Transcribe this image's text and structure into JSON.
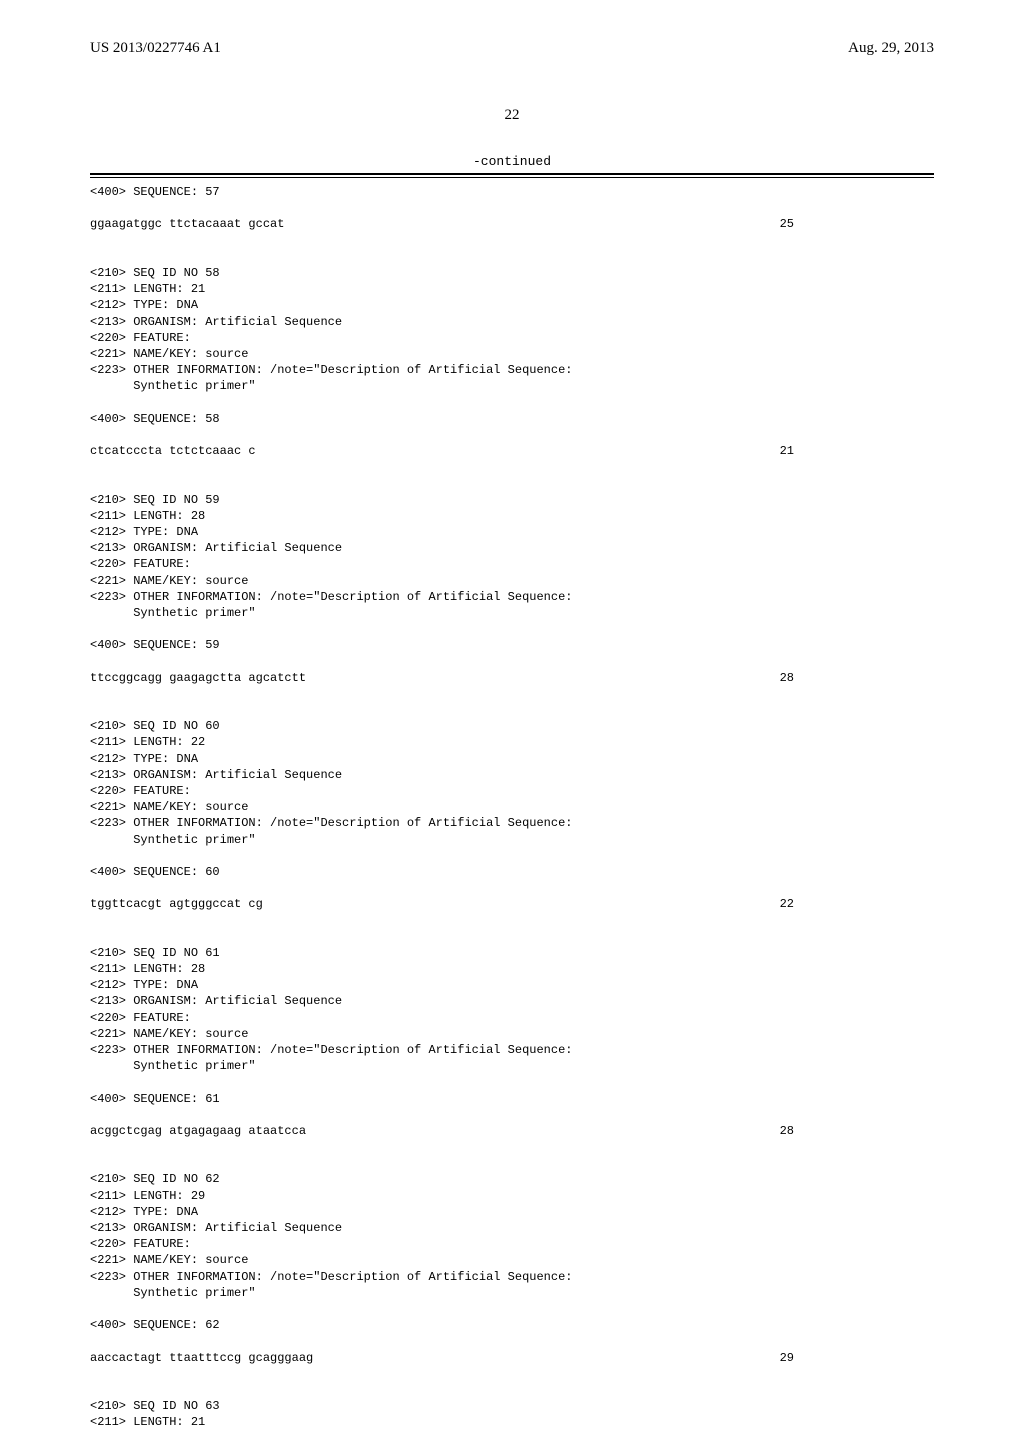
{
  "header": {
    "left": "US 2013/0227746 A1",
    "right": "Aug. 29, 2013"
  },
  "page_number": "22",
  "continued_label": "-continued",
  "entries": [
    {
      "type": "line",
      "text": "<400> SEQUENCE: 57"
    },
    {
      "type": "blank"
    },
    {
      "type": "seq",
      "text": "ggaagatggc ttctacaaat gccat",
      "num": "25"
    },
    {
      "type": "blank"
    },
    {
      "type": "blank"
    },
    {
      "type": "line",
      "text": "<210> SEQ ID NO 58"
    },
    {
      "type": "line",
      "text": "<211> LENGTH: 21"
    },
    {
      "type": "line",
      "text": "<212> TYPE: DNA"
    },
    {
      "type": "line",
      "text": "<213> ORGANISM: Artificial Sequence"
    },
    {
      "type": "line",
      "text": "<220> FEATURE:"
    },
    {
      "type": "line",
      "text": "<221> NAME/KEY: source"
    },
    {
      "type": "line",
      "text": "<223> OTHER INFORMATION: /note=\"Description of Artificial Sequence:"
    },
    {
      "type": "line",
      "text": "      Synthetic primer\""
    },
    {
      "type": "blank"
    },
    {
      "type": "line",
      "text": "<400> SEQUENCE: 58"
    },
    {
      "type": "blank"
    },
    {
      "type": "seq",
      "text": "ctcatcccta tctctcaaac c",
      "num": "21"
    },
    {
      "type": "blank"
    },
    {
      "type": "blank"
    },
    {
      "type": "line",
      "text": "<210> SEQ ID NO 59"
    },
    {
      "type": "line",
      "text": "<211> LENGTH: 28"
    },
    {
      "type": "line",
      "text": "<212> TYPE: DNA"
    },
    {
      "type": "line",
      "text": "<213> ORGANISM: Artificial Sequence"
    },
    {
      "type": "line",
      "text": "<220> FEATURE:"
    },
    {
      "type": "line",
      "text": "<221> NAME/KEY: source"
    },
    {
      "type": "line",
      "text": "<223> OTHER INFORMATION: /note=\"Description of Artificial Sequence:"
    },
    {
      "type": "line",
      "text": "      Synthetic primer\""
    },
    {
      "type": "blank"
    },
    {
      "type": "line",
      "text": "<400> SEQUENCE: 59"
    },
    {
      "type": "blank"
    },
    {
      "type": "seq",
      "text": "ttccggcagg gaagagctta agcatctt",
      "num": "28"
    },
    {
      "type": "blank"
    },
    {
      "type": "blank"
    },
    {
      "type": "line",
      "text": "<210> SEQ ID NO 60"
    },
    {
      "type": "line",
      "text": "<211> LENGTH: 22"
    },
    {
      "type": "line",
      "text": "<212> TYPE: DNA"
    },
    {
      "type": "line",
      "text": "<213> ORGANISM: Artificial Sequence"
    },
    {
      "type": "line",
      "text": "<220> FEATURE:"
    },
    {
      "type": "line",
      "text": "<221> NAME/KEY: source"
    },
    {
      "type": "line",
      "text": "<223> OTHER INFORMATION: /note=\"Description of Artificial Sequence:"
    },
    {
      "type": "line",
      "text": "      Synthetic primer\""
    },
    {
      "type": "blank"
    },
    {
      "type": "line",
      "text": "<400> SEQUENCE: 60"
    },
    {
      "type": "blank"
    },
    {
      "type": "seq",
      "text": "tggttcacgt agtgggccat cg",
      "num": "22"
    },
    {
      "type": "blank"
    },
    {
      "type": "blank"
    },
    {
      "type": "line",
      "text": "<210> SEQ ID NO 61"
    },
    {
      "type": "line",
      "text": "<211> LENGTH: 28"
    },
    {
      "type": "line",
      "text": "<212> TYPE: DNA"
    },
    {
      "type": "line",
      "text": "<213> ORGANISM: Artificial Sequence"
    },
    {
      "type": "line",
      "text": "<220> FEATURE:"
    },
    {
      "type": "line",
      "text": "<221> NAME/KEY: source"
    },
    {
      "type": "line",
      "text": "<223> OTHER INFORMATION: /note=\"Description of Artificial Sequence:"
    },
    {
      "type": "line",
      "text": "      Synthetic primer\""
    },
    {
      "type": "blank"
    },
    {
      "type": "line",
      "text": "<400> SEQUENCE: 61"
    },
    {
      "type": "blank"
    },
    {
      "type": "seq",
      "text": "acggctcgag atgagagaag ataatcca",
      "num": "28"
    },
    {
      "type": "blank"
    },
    {
      "type": "blank"
    },
    {
      "type": "line",
      "text": "<210> SEQ ID NO 62"
    },
    {
      "type": "line",
      "text": "<211> LENGTH: 29"
    },
    {
      "type": "line",
      "text": "<212> TYPE: DNA"
    },
    {
      "type": "line",
      "text": "<213> ORGANISM: Artificial Sequence"
    },
    {
      "type": "line",
      "text": "<220> FEATURE:"
    },
    {
      "type": "line",
      "text": "<221> NAME/KEY: source"
    },
    {
      "type": "line",
      "text": "<223> OTHER INFORMATION: /note=\"Description of Artificial Sequence:"
    },
    {
      "type": "line",
      "text": "      Synthetic primer\""
    },
    {
      "type": "blank"
    },
    {
      "type": "line",
      "text": "<400> SEQUENCE: 62"
    },
    {
      "type": "blank"
    },
    {
      "type": "seq",
      "text": "aaccactagt ttaatttccg gcagggaag",
      "num": "29"
    },
    {
      "type": "blank"
    },
    {
      "type": "blank"
    },
    {
      "type": "line",
      "text": "<210> SEQ ID NO 63"
    },
    {
      "type": "line",
      "text": "<211> LENGTH: 21"
    }
  ]
}
